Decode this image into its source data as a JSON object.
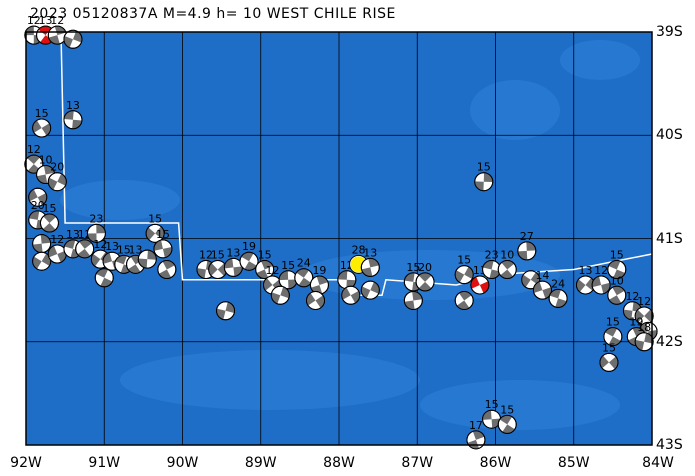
{
  "title": "2023 05120837A  M=4.9  h= 10  WEST CHILE RISE",
  "lon_labels": [
    "92W",
    "91W",
    "90W",
    "89W",
    "88W",
    "87W",
    "86W",
    "85W",
    "84W"
  ],
  "lat_labels": [
    "39S",
    "40S",
    "41S",
    "42S",
    "43S"
  ],
  "colors": {
    "ocean": "#1e6ec8",
    "ocean_light": "#2f82d8",
    "ridge": "#ffffff",
    "grid": "#000000",
    "beach_dark": "#6e6e6e",
    "beach_light": "#ffffff",
    "highlight_red": "#e01010",
    "highlight_yellow": "#ffee00"
  },
  "events": [
    {
      "lon": -91.9,
      "lat": -39.03,
      "mag": "12"
    },
    {
      "lon": -91.75,
      "lat": -39.03,
      "mag": "13",
      "red": true
    },
    {
      "lon": -91.6,
      "lat": -39.03,
      "mag": "12"
    },
    {
      "lon": -91.4,
      "lat": -39.07,
      "mag": ""
    },
    {
      "lon": -91.8,
      "lat": -39.93,
      "mag": "15"
    },
    {
      "lon": -91.4,
      "lat": -39.85,
      "mag": "13"
    },
    {
      "lon": -91.9,
      "lat": -40.28,
      "mag": "12"
    },
    {
      "lon": -91.75,
      "lat": -40.38,
      "mag": "10"
    },
    {
      "lon": -91.6,
      "lat": -40.45,
      "mag": "20"
    },
    {
      "lon": -91.85,
      "lat": -40.6,
      "mag": ""
    },
    {
      "lon": -91.85,
      "lat": -40.82,
      "mag": "20"
    },
    {
      "lon": -91.7,
      "lat": -40.85,
      "mag": "15"
    },
    {
      "lon": -91.8,
      "lat": -41.05,
      "mag": ""
    },
    {
      "lon": -91.8,
      "lat": -41.22,
      "mag": ""
    },
    {
      "lon": -91.6,
      "lat": -41.15,
      "mag": "12"
    },
    {
      "lon": -91.4,
      "lat": -41.1,
      "mag": "13"
    },
    {
      "lon": -91.25,
      "lat": -41.1,
      "mag": "12"
    },
    {
      "lon": -91.1,
      "lat": -40.95,
      "mag": "23"
    },
    {
      "lon": -91.05,
      "lat": -41.2,
      "mag": "12"
    },
    {
      "lon": -90.9,
      "lat": -41.22,
      "mag": "13"
    },
    {
      "lon": -90.75,
      "lat": -41.25,
      "mag": "15"
    },
    {
      "lon": -90.6,
      "lat": -41.25,
      "mag": "13"
    },
    {
      "lon": -90.45,
      "lat": -41.2,
      "mag": ""
    },
    {
      "lon": -90.35,
      "lat": -40.95,
      "mag": "15"
    },
    {
      "lon": -90.25,
      "lat": -41.1,
      "mag": "15"
    },
    {
      "lon": -91.0,
      "lat": -41.38,
      "mag": ""
    },
    {
      "lon": -90.2,
      "lat": -41.3,
      "mag": ""
    },
    {
      "lon": -89.7,
      "lat": -41.3,
      "mag": "12"
    },
    {
      "lon": -89.55,
      "lat": -41.3,
      "mag": "15"
    },
    {
      "lon": -89.35,
      "lat": -41.28,
      "mag": "13"
    },
    {
      "lon": -89.15,
      "lat": -41.22,
      "mag": "19"
    },
    {
      "lon": -88.95,
      "lat": -41.3,
      "mag": "15"
    },
    {
      "lon": -89.45,
      "lat": -41.7,
      "mag": ""
    },
    {
      "lon": -88.85,
      "lat": -41.45,
      "mag": "12"
    },
    {
      "lon": -88.65,
      "lat": -41.4,
      "mag": "15"
    },
    {
      "lon": -88.45,
      "lat": -41.38,
      "mag": "24"
    },
    {
      "lon": -88.25,
      "lat": -41.45,
      "mag": "19"
    },
    {
      "lon": -88.75,
      "lat": -41.55,
      "mag": ""
    },
    {
      "lon": -88.3,
      "lat": -41.6,
      "mag": ""
    },
    {
      "lon": -87.9,
      "lat": -41.4,
      "mag": "12"
    },
    {
      "lon": -87.75,
      "lat": -41.25,
      "mag": "28",
      "yellow": true
    },
    {
      "lon": -87.6,
      "lat": -41.28,
      "mag": "13"
    },
    {
      "lon": -87.6,
      "lat": -41.5,
      "mag": ""
    },
    {
      "lon": -87.85,
      "lat": -41.55,
      "mag": ""
    },
    {
      "lon": -87.05,
      "lat": -41.42,
      "mag": "15"
    },
    {
      "lon": -86.9,
      "lat": -41.42,
      "mag": "20"
    },
    {
      "lon": -87.05,
      "lat": -41.6,
      "mag": ""
    },
    {
      "lon": -86.4,
      "lat": -41.35,
      "mag": "15"
    },
    {
      "lon": -86.2,
      "lat": -41.45,
      "mag": "13",
      "red": true
    },
    {
      "lon": -86.05,
      "lat": -41.3,
      "mag": "23"
    },
    {
      "lon": -85.85,
      "lat": -41.3,
      "mag": "10"
    },
    {
      "lon": -85.6,
      "lat": -41.12,
      "mag": "27"
    },
    {
      "lon": -85.55,
      "lat": -41.4,
      "mag": ""
    },
    {
      "lon": -85.4,
      "lat": -41.5,
      "mag": "14"
    },
    {
      "lon": -85.2,
      "lat": -41.58,
      "mag": "24"
    },
    {
      "lon": -86.4,
      "lat": -41.6,
      "mag": ""
    },
    {
      "lon": -86.15,
      "lat": -40.45,
      "mag": "15"
    },
    {
      "lon": -84.85,
      "lat": -41.45,
      "mag": "13"
    },
    {
      "lon": -84.65,
      "lat": -41.45,
      "mag": "12"
    },
    {
      "lon": -84.45,
      "lat": -41.3,
      "mag": "15"
    },
    {
      "lon": -84.45,
      "lat": -41.55,
      "mag": "10"
    },
    {
      "lon": -84.25,
      "lat": -41.7,
      "mag": "12"
    },
    {
      "lon": -84.1,
      "lat": -41.75,
      "mag": "12"
    },
    {
      "lon": -84.05,
      "lat": -41.9,
      "mag": ""
    },
    {
      "lon": -84.5,
      "lat": -41.95,
      "mag": "15"
    },
    {
      "lon": -84.2,
      "lat": -41.95,
      "mag": "19"
    },
    {
      "lon": -84.1,
      "lat": -42.0,
      "mag": "18"
    },
    {
      "lon": -84.55,
      "lat": -42.2,
      "mag": "15"
    },
    {
      "lon": -86.05,
      "lat": -42.75,
      "mag": "15"
    },
    {
      "lon": -85.85,
      "lat": -42.8,
      "mag": "15"
    },
    {
      "lon": -86.25,
      "lat": -42.95,
      "mag": "17"
    }
  ]
}
